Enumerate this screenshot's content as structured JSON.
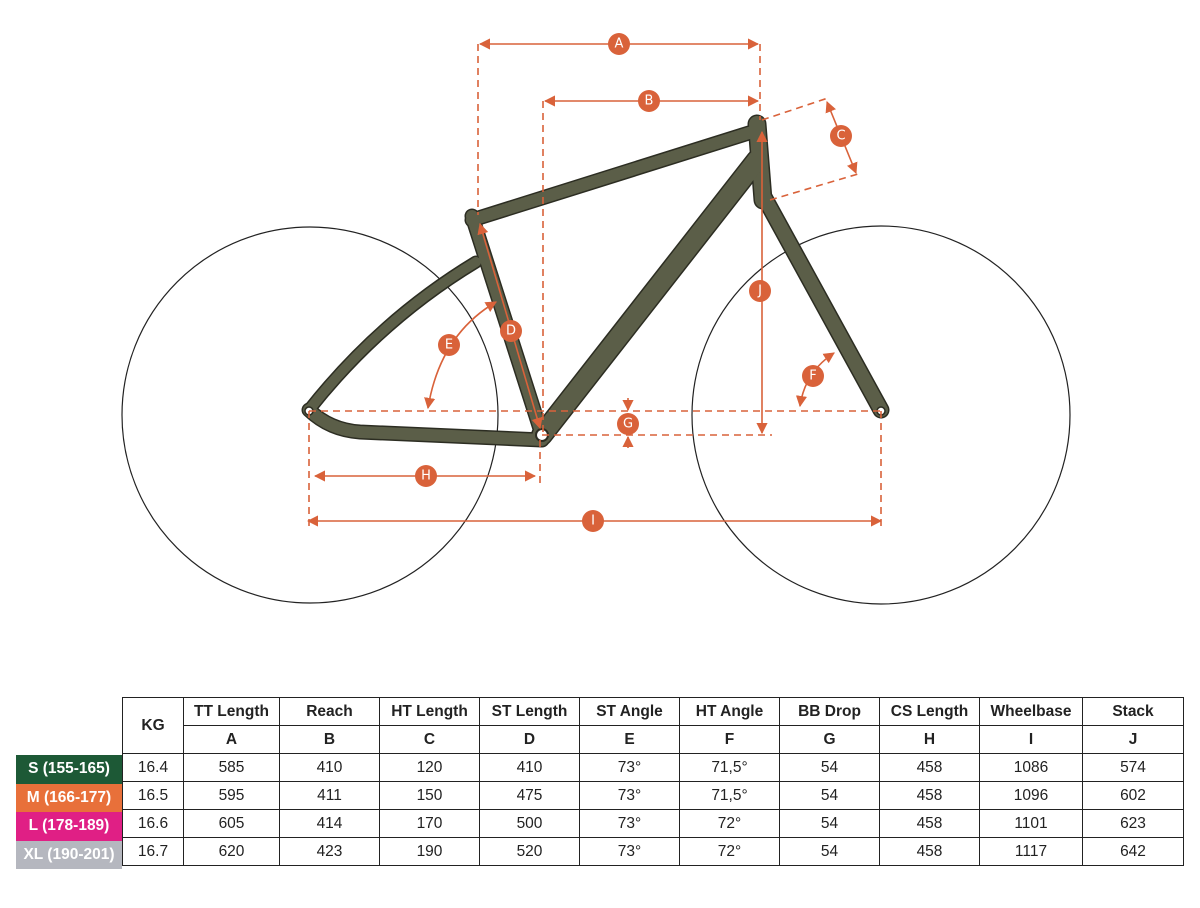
{
  "colors": {
    "frame": "#5b5e48",
    "frame_outline": "#2c2d22",
    "dimension": "#d9623a",
    "S": "#1d5936",
    "M": "#e8703a",
    "L": "#e01f85",
    "XL": "#b5b7bf"
  },
  "dimension_labels": {
    "A": "A",
    "B": "B",
    "C": "C",
    "D": "D",
    "E": "E",
    "F": "F",
    "G": "G",
    "H": "H",
    "I": "I",
    "J": "J"
  },
  "table": {
    "kg_header": "KG",
    "columns": [
      {
        "name": "TT Length",
        "letter": "A"
      },
      {
        "name": "Reach",
        "letter": "B"
      },
      {
        "name": "HT Length",
        "letter": "C"
      },
      {
        "name": "ST Length",
        "letter": "D"
      },
      {
        "name": "ST Angle",
        "letter": "E"
      },
      {
        "name": "HT Angle",
        "letter": "F"
      },
      {
        "name": "BB Drop",
        "letter": "G"
      },
      {
        "name": "CS Length",
        "letter": "H"
      },
      {
        "name": "Wheelbase",
        "letter": "I"
      },
      {
        "name": "Stack",
        "letter": "J"
      }
    ],
    "rows": [
      {
        "size": "S (155-165)",
        "kg": "16.4",
        "values": [
          "585",
          "410",
          "120",
          "410",
          "73°",
          "71,5°",
          "54",
          "458",
          "1086",
          "574"
        ]
      },
      {
        "size": "M (166-177)",
        "kg": "16.5",
        "values": [
          "595",
          "411",
          "150",
          "475",
          "73°",
          "71,5°",
          "54",
          "458",
          "1096",
          "602"
        ]
      },
      {
        "size": "L (178-189)",
        "kg": "16.6",
        "values": [
          "605",
          "414",
          "170",
          "500",
          "73°",
          "72°",
          "54",
          "458",
          "1101",
          "623"
        ]
      },
      {
        "size": "XL (190-201)",
        "kg": "16.7",
        "values": [
          "620",
          "423",
          "190",
          "520",
          "73°",
          "72°",
          "54",
          "458",
          "1117",
          "642"
        ]
      }
    ]
  }
}
